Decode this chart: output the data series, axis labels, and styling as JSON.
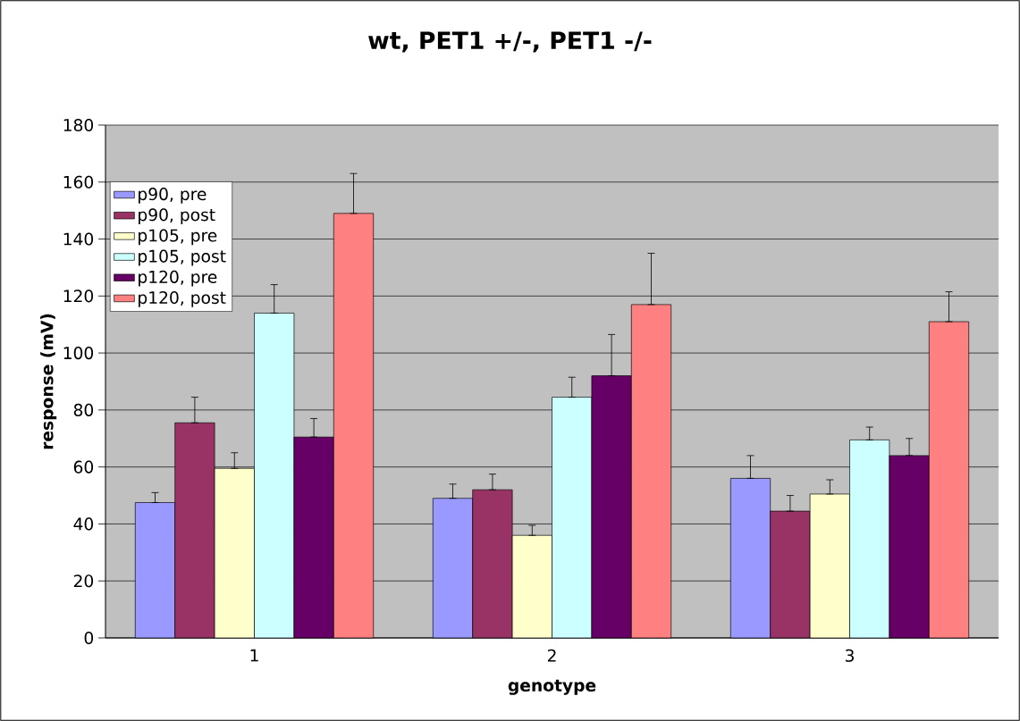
{
  "chart_data": {
    "type": "bar",
    "title": "wt, PET1 +/-, PET1 -/-",
    "xlabel": "genotype",
    "ylabel": "response (mV)",
    "categories": [
      "1",
      "2",
      "3"
    ],
    "series": [
      {
        "name": "p90, pre",
        "color": "#9999ff",
        "values": [
          47.5,
          49,
          56
        ],
        "errors": [
          [
            47.5,
            51
          ],
          [
            49,
            54
          ],
          [
            56,
            64
          ]
        ]
      },
      {
        "name": "p90, post",
        "color": "#993366",
        "values": [
          75.5,
          52,
          44.5
        ],
        "errors": [
          [
            75.5,
            84.5
          ],
          [
            52,
            57.5
          ],
          [
            44.5,
            50
          ]
        ]
      },
      {
        "name": "p105, pre",
        "color": "#ffffcc",
        "values": [
          59.5,
          36,
          50.5
        ],
        "errors": [
          [
            59.5,
            65
          ],
          [
            36,
            39.5
          ],
          [
            50.5,
            55.5
          ]
        ]
      },
      {
        "name": "p105, post",
        "color": "#ccffff",
        "values": [
          114,
          84.5,
          69.5
        ],
        "errors": [
          [
            114,
            124
          ],
          [
            84.5,
            91.5
          ],
          [
            69.5,
            74
          ]
        ]
      },
      {
        "name": "p120, pre",
        "color": "#660066",
        "values": [
          70.5,
          92,
          64
        ],
        "errors": [
          [
            70.5,
            77
          ],
          [
            92,
            106.5
          ],
          [
            64,
            70
          ]
        ]
      },
      {
        "name": "p120, post",
        "color": "#ff8080",
        "values": [
          149,
          117,
          111
        ],
        "errors": [
          [
            149,
            163
          ],
          [
            117,
            135
          ],
          [
            111,
            121.5
          ]
        ]
      }
    ],
    "ylim": [
      0,
      180
    ],
    "yticks": [
      0,
      20,
      40,
      60,
      80,
      100,
      120,
      140,
      160,
      180
    ],
    "grid": "y",
    "legend": "top left"
  }
}
